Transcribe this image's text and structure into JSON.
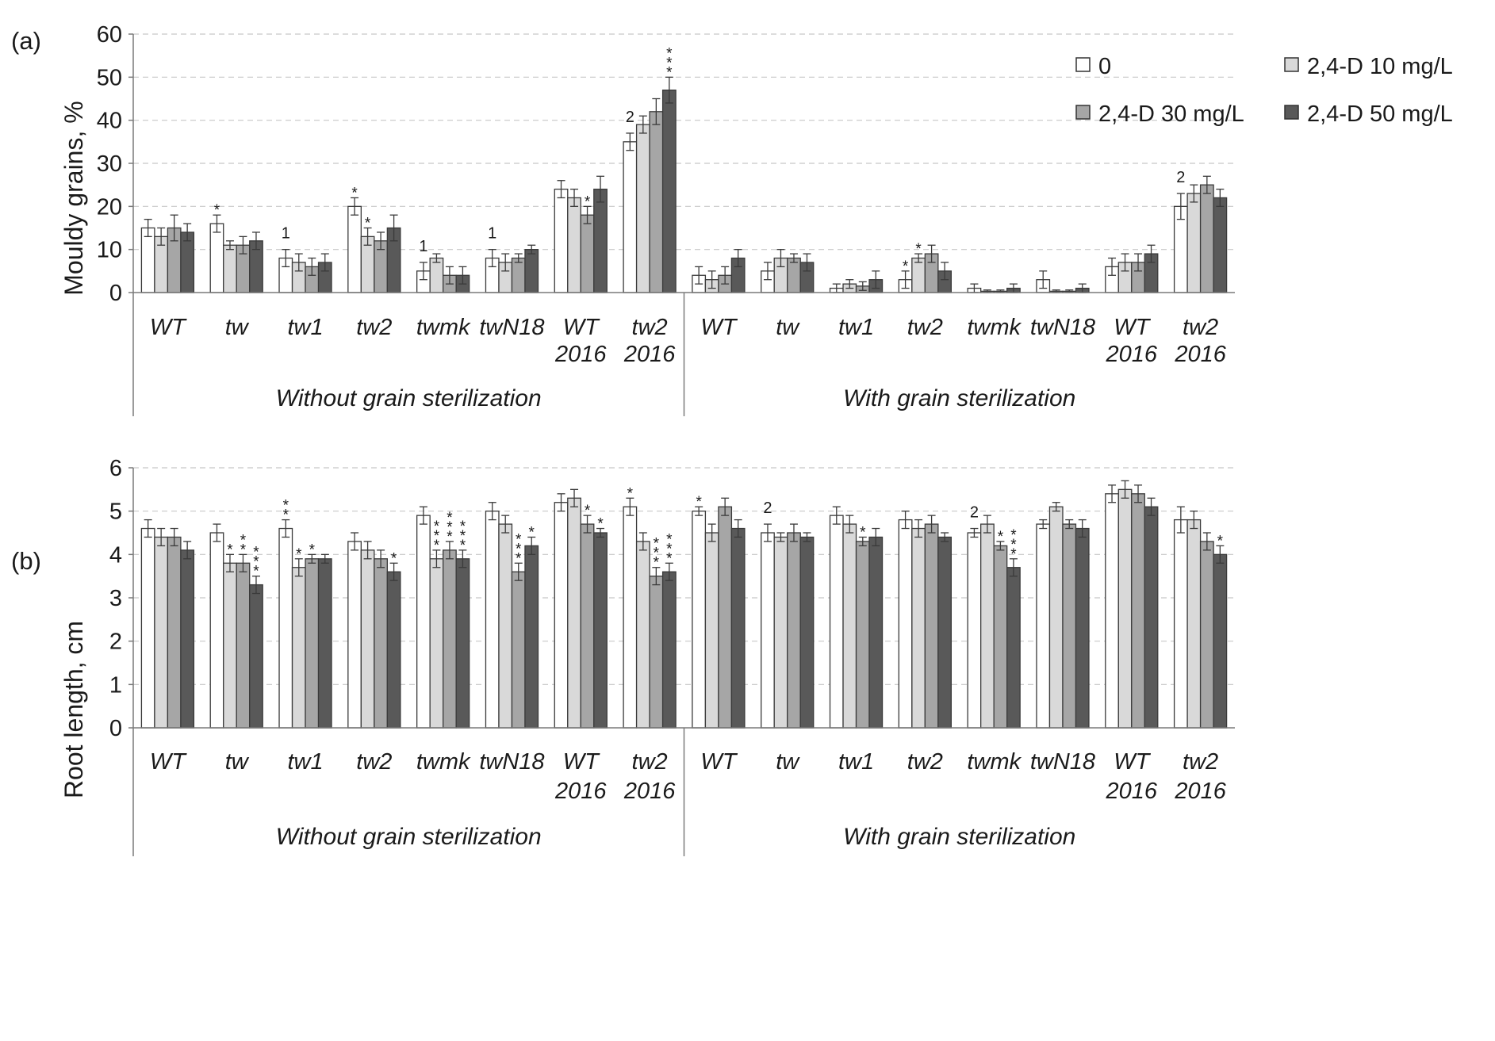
{
  "chart_data": [
    {
      "type": "bar",
      "panel_label": "(a)",
      "ylabel": "Mouldy grains, %",
      "ylim": [
        0,
        60
      ],
      "yticks": [
        "0",
        "10",
        "20",
        "30",
        "40",
        "50",
        "60"
      ],
      "grid": true,
      "legend_position": "top-right",
      "groups": [
        {
          "label": "Without grain sterilization",
          "categories": [
            [
              "WT"
            ],
            [
              "tw"
            ],
            [
              "tw1"
            ],
            [
              "tw2"
            ],
            [
              "twmk"
            ],
            [
              "twN18"
            ],
            [
              "WT",
              "2016"
            ],
            [
              "tw2",
              "2016"
            ]
          ]
        },
        {
          "label": "With grain sterilization",
          "categories": [
            [
              "WT"
            ],
            [
              "tw"
            ],
            [
              "tw1"
            ],
            [
              "tw2"
            ],
            [
              "twmk"
            ],
            [
              "twN18"
            ],
            [
              "WT",
              "2016"
            ],
            [
              "tw2",
              "2016"
            ]
          ]
        }
      ],
      "series": [
        {
          "name": "0",
          "color": "#ffffff",
          "values": [
            15,
            16,
            8,
            20,
            5,
            8,
            24,
            35,
            4,
            5,
            1,
            3,
            1,
            3,
            6,
            20
          ],
          "errors": [
            2,
            2,
            2,
            2,
            2,
            2,
            2,
            2,
            2,
            2,
            1,
            2,
            1,
            2,
            2,
            3
          ]
        },
        {
          "name": "2,4-D 10 mg/L",
          "color": "#d9d9d9",
          "values": [
            13,
            11,
            7,
            13,
            8,
            7,
            22,
            39,
            3,
            8,
            2,
            8,
            0.3,
            0.3,
            7,
            23
          ],
          "errors": [
            2,
            1,
            2,
            2,
            1,
            2,
            2,
            2,
            2,
            2,
            1,
            1,
            0.3,
            0.3,
            2,
            2
          ]
        },
        {
          "name": "2,4-D 30 mg/L",
          "color": "#a6a6a6",
          "values": [
            15,
            11,
            6,
            12,
            4,
            8,
            18,
            42,
            4,
            8,
            1.5,
            9,
            0.3,
            0.3,
            7,
            25
          ],
          "errors": [
            3,
            2,
            2,
            2,
            2,
            1,
            2,
            3,
            2,
            1,
            1,
            2,
            0.3,
            0.3,
            2,
            2
          ]
        },
        {
          "name": "2,4-D 50 mg/L",
          "color": "#595959",
          "values": [
            14,
            12,
            7,
            15,
            4,
            10,
            24,
            47,
            8,
            7,
            3,
            5,
            1,
            1,
            9,
            22
          ],
          "errors": [
            2,
            2,
            2,
            3,
            2,
            1,
            3,
            3,
            2,
            2,
            2,
            2,
            1,
            1,
            2,
            2
          ]
        }
      ],
      "significance": [
        {
          "category": 1,
          "series": 0,
          "text": "*"
        },
        {
          "category": 3,
          "series": 0,
          "text": "*"
        },
        {
          "category": 3,
          "series": 1,
          "text": "*"
        },
        {
          "category": 6,
          "series": 2,
          "text": "*"
        },
        {
          "category": 7,
          "series": 3,
          "text": "***"
        },
        {
          "category": 11,
          "series": 0,
          "text": "*"
        },
        {
          "category": 11,
          "series": 1,
          "text": "*"
        }
      ],
      "notes": [
        {
          "category": 2,
          "text": "1"
        },
        {
          "category": 4,
          "text": "1"
        },
        {
          "category": 5,
          "text": "1"
        },
        {
          "category": 7,
          "text": "2"
        },
        {
          "category": 15,
          "text": "2"
        }
      ]
    },
    {
      "type": "bar",
      "panel_label": "(b)",
      "ylabel": "Root length, cm",
      "ylim": [
        0,
        6
      ],
      "yticks": [
        "0",
        "1",
        "2",
        "3",
        "4",
        "5",
        "6"
      ],
      "grid": true,
      "groups": [
        {
          "label": "Without grain sterilization",
          "categories": [
            [
              "WT"
            ],
            [
              "tw"
            ],
            [
              "tw1"
            ],
            [
              "tw2"
            ],
            [
              "twmk"
            ],
            [
              "twN18"
            ],
            [
              "WT",
              "2016"
            ],
            [
              "tw2",
              "2016"
            ]
          ]
        },
        {
          "label": "With grain sterilization",
          "categories": [
            [
              "WT"
            ],
            [
              "tw"
            ],
            [
              "tw1"
            ],
            [
              "tw2"
            ],
            [
              "twmk"
            ],
            [
              "twN18"
            ],
            [
              "WT",
              "2016"
            ],
            [
              "tw2",
              "2016"
            ]
          ]
        }
      ],
      "series": [
        {
          "name": "0",
          "color": "#ffffff",
          "values": [
            4.6,
            4.5,
            4.6,
            4.3,
            4.9,
            5.0,
            5.2,
            5.1,
            5.0,
            4.5,
            4.9,
            4.8,
            4.5,
            4.7,
            5.4,
            4.8
          ],
          "errors": [
            0.2,
            0.2,
            0.2,
            0.2,
            0.2,
            0.2,
            0.2,
            0.2,
            0.1,
            0.2,
            0.2,
            0.2,
            0.1,
            0.1,
            0.2,
            0.3
          ]
        },
        {
          "name": "2,4-D 10 mg/L",
          "color": "#d9d9d9",
          "values": [
            4.4,
            3.8,
            3.7,
            4.1,
            3.9,
            4.7,
            5.3,
            4.3,
            4.5,
            4.4,
            4.7,
            4.6,
            4.7,
            5.1,
            5.5,
            4.8
          ],
          "errors": [
            0.2,
            0.2,
            0.2,
            0.2,
            0.2,
            0.2,
            0.2,
            0.2,
            0.2,
            0.1,
            0.2,
            0.2,
            0.2,
            0.1,
            0.2,
            0.2
          ]
        },
        {
          "name": "2,4-D 30 mg/L",
          "color": "#a6a6a6",
          "values": [
            4.4,
            3.8,
            3.9,
            3.9,
            4.1,
            3.6,
            4.7,
            3.5,
            5.1,
            4.5,
            4.3,
            4.7,
            4.2,
            4.7,
            5.4,
            4.3
          ],
          "errors": [
            0.2,
            0.2,
            0.1,
            0.2,
            0.2,
            0.2,
            0.2,
            0.2,
            0.2,
            0.2,
            0.1,
            0.2,
            0.1,
            0.1,
            0.2,
            0.2
          ]
        },
        {
          "name": "2,4-D 50 mg/L",
          "color": "#595959",
          "values": [
            4.1,
            3.3,
            3.9,
            3.6,
            3.9,
            4.2,
            4.5,
            3.6,
            4.6,
            4.4,
            4.4,
            4.4,
            3.7,
            4.6,
            5.1,
            4.0
          ],
          "errors": [
            0.2,
            0.2,
            0.1,
            0.2,
            0.2,
            0.2,
            0.1,
            0.2,
            0.2,
            0.1,
            0.2,
            0.1,
            0.2,
            0.2,
            0.2,
            0.2
          ]
        }
      ],
      "significance": [
        {
          "category": 1,
          "series": 1,
          "text": "*"
        },
        {
          "category": 1,
          "series": 2,
          "text": "**"
        },
        {
          "category": 1,
          "series": 3,
          "text": "***"
        },
        {
          "category": 2,
          "series": 0,
          "text": "**"
        },
        {
          "category": 2,
          "series": 1,
          "text": "*"
        },
        {
          "category": 2,
          "series": 2,
          "text": "*"
        },
        {
          "category": 3,
          "series": 3,
          "text": "*"
        },
        {
          "category": 4,
          "series": 1,
          "text": "***"
        },
        {
          "category": 4,
          "series": 2,
          "text": "***"
        },
        {
          "category": 4,
          "series": 3,
          "text": "***"
        },
        {
          "category": 5,
          "series": 2,
          "text": "***"
        },
        {
          "category": 5,
          "series": 3,
          "text": "*"
        },
        {
          "category": 6,
          "series": 2,
          "text": "*"
        },
        {
          "category": 6,
          "series": 3,
          "text": "*"
        },
        {
          "category": 7,
          "series": 0,
          "text": "*"
        },
        {
          "category": 7,
          "series": 2,
          "text": "***"
        },
        {
          "category": 7,
          "series": 3,
          "text": "***"
        },
        {
          "category": 8,
          "series": 0,
          "text": "*"
        },
        {
          "category": 10,
          "series": 2,
          "text": "*"
        },
        {
          "category": 12,
          "series": 2,
          "text": "*"
        },
        {
          "category": 12,
          "series": 3,
          "text": "***"
        },
        {
          "category": 15,
          "series": 3,
          "text": "*"
        }
      ],
      "notes": [
        {
          "category": 9,
          "text": "2"
        },
        {
          "category": 12,
          "text": "2"
        }
      ]
    }
  ]
}
